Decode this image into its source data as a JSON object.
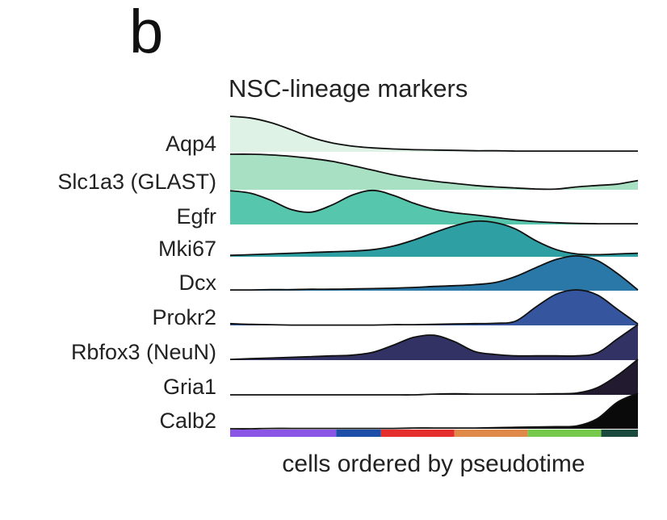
{
  "panel_label": "b",
  "chart_data": {
    "type": "area",
    "title": "NSC-lineage markers",
    "xlabel": "cells ordered by pseudotime",
    "ylabel": "",
    "x": [
      0,
      0.05,
      0.1,
      0.15,
      0.2,
      0.25,
      0.3,
      0.35,
      0.4,
      0.45,
      0.5,
      0.55,
      0.6,
      0.65,
      0.7,
      0.75,
      0.8,
      0.85,
      0.9,
      0.95,
      1.0
    ],
    "xlim": [
      0,
      1
    ],
    "series": [
      {
        "name": "Aqp4",
        "color": "#dff2e6",
        "values": [
          1.0,
          0.95,
          0.82,
          0.62,
          0.4,
          0.25,
          0.16,
          0.11,
          0.08,
          0.06,
          0.05,
          0.04,
          0.03,
          0.03,
          0.02,
          0.02,
          0.02,
          0.02,
          0.02,
          0.02,
          0.02
        ]
      },
      {
        "name": "Slc1a3 (GLAST)",
        "color": "#a7e0c3",
        "values": [
          1.0,
          1.0,
          0.98,
          0.94,
          0.88,
          0.8,
          0.68,
          0.55,
          0.42,
          0.32,
          0.24,
          0.18,
          0.12,
          0.08,
          0.05,
          0.02,
          0.02,
          0.08,
          0.12,
          0.16,
          0.26
        ]
      },
      {
        "name": "Egfr",
        "color": "#56c6ad",
        "values": [
          0.95,
          0.88,
          0.68,
          0.42,
          0.35,
          0.55,
          0.83,
          0.96,
          0.82,
          0.6,
          0.43,
          0.33,
          0.27,
          0.2,
          0.13,
          0.08,
          0.05,
          0.03,
          0.02,
          0.02,
          0.02
        ]
      },
      {
        "name": "Mki67",
        "color": "#2e9fa3",
        "values": [
          0.04,
          0.06,
          0.08,
          0.1,
          0.12,
          0.14,
          0.16,
          0.2,
          0.3,
          0.47,
          0.68,
          0.87,
          1.0,
          0.96,
          0.78,
          0.45,
          0.2,
          0.08,
          0.06,
          0.08,
          0.1
        ]
      },
      {
        "name": "Dcx",
        "color": "#2a78a8",
        "values": [
          0.02,
          0.02,
          0.03,
          0.03,
          0.04,
          0.04,
          0.05,
          0.06,
          0.07,
          0.09,
          0.12,
          0.14,
          0.17,
          0.23,
          0.4,
          0.65,
          0.88,
          0.98,
          0.85,
          0.48,
          0.02
        ]
      },
      {
        "name": "Prokr2",
        "color": "#35559e",
        "values": [
          0.05,
          0.03,
          0.02,
          0.01,
          0.01,
          0.01,
          0.01,
          0.01,
          0.02,
          0.02,
          0.03,
          0.04,
          0.05,
          0.06,
          0.12,
          0.52,
          0.88,
          1.0,
          0.86,
          0.45,
          0.04
        ]
      },
      {
        "name": "Rbfox3 (NeuN)",
        "color": "#333265",
        "values": [
          0.02,
          0.04,
          0.06,
          0.08,
          0.1,
          0.12,
          0.14,
          0.22,
          0.42,
          0.64,
          0.7,
          0.52,
          0.24,
          0.16,
          0.12,
          0.12,
          0.12,
          0.12,
          0.2,
          0.6,
          1.0
        ]
      },
      {
        "name": "Gria1",
        "color": "#221a2e",
        "values": [
          0.0,
          0.0,
          0.0,
          0.0,
          0.0,
          0.0,
          0.0,
          0.0,
          0.0,
          0.0,
          0.02,
          0.03,
          0.02,
          0.02,
          0.02,
          0.02,
          0.03,
          0.05,
          0.2,
          0.55,
          1.0
        ]
      },
      {
        "name": "Calb2",
        "color": "#0a0a0a",
        "values": [
          0.0,
          0.0,
          0.01,
          0.01,
          0.01,
          0.01,
          0.01,
          0.01,
          0.01,
          0.02,
          0.02,
          0.02,
          0.02,
          0.03,
          0.04,
          0.05,
          0.06,
          0.08,
          0.28,
          0.75,
          1.0
        ]
      }
    ],
    "pseudotime_bar": [
      {
        "from": 0.0,
        "to": 0.26,
        "color": "#8b55e6"
      },
      {
        "from": 0.26,
        "to": 0.37,
        "color": "#1d4fa8"
      },
      {
        "from": 0.37,
        "to": 0.55,
        "color": "#e52e2e"
      },
      {
        "from": 0.55,
        "to": 0.73,
        "color": "#e08a4a"
      },
      {
        "from": 0.73,
        "to": 0.91,
        "color": "#77c94b"
      },
      {
        "from": 0.91,
        "to": 1.0,
        "color": "#1a4a3e"
      }
    ],
    "legend": "none",
    "grid": false
  }
}
